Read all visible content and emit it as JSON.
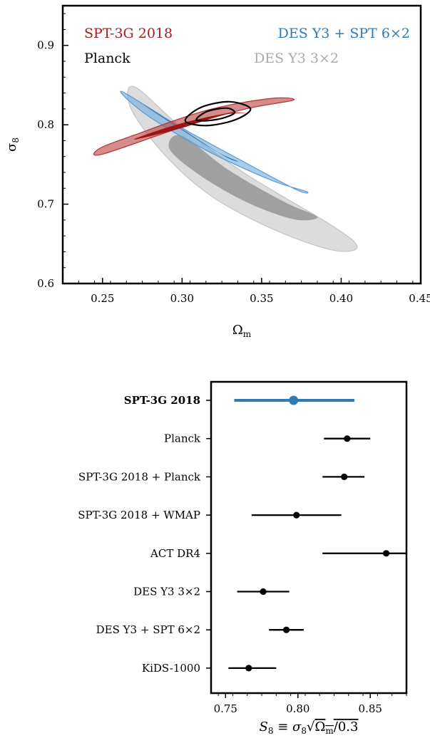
{
  "chart_data": [
    {
      "type": "contour",
      "xlabel": "Ω",
      "xlabel_sub": "m",
      "ylabel": "σ",
      "ylabel_sub": "8",
      "xlim": [
        0.225,
        0.45
      ],
      "ylim": [
        0.6,
        0.95
      ],
      "xticks": [
        "0.25",
        "0.30",
        "0.35",
        "0.40",
        "0.45"
      ],
      "yticks": [
        "0.6",
        "0.7",
        "0.8",
        "0.9"
      ],
      "legend": [
        {
          "label": "SPT-3G 2018",
          "color": "#a31f1f"
        },
        {
          "label": "DES Y3 + SPT 6×2",
          "color": "#2f7bb5"
        },
        {
          "label": "Planck",
          "color": "#000000"
        },
        {
          "label": "DES Y3 3×2",
          "color": "#aaaaaa"
        }
      ],
      "series": [
        {
          "name": "DES Y3 3×2",
          "color": "#aaaaaa",
          "center": [
            0.335,
            0.736
          ],
          "contours": [
            {
              "level": "95%",
              "points": [
                [
                  0.27,
                  0.848
                ],
                [
                  0.3,
                  0.796
                ],
                [
                  0.34,
                  0.738
                ],
                [
                  0.395,
                  0.672
                ],
                [
                  0.41,
                  0.646
                ],
                [
                  0.395,
                  0.642
                ],
                [
                  0.36,
                  0.666
                ],
                [
                  0.32,
                  0.708
                ],
                [
                  0.29,
                  0.76
                ],
                [
                  0.268,
                  0.82
                ]
              ]
            },
            {
              "level": "68%",
              "points": [
                [
                  0.3,
                  0.786
                ],
                [
                  0.33,
                  0.742
                ],
                [
                  0.365,
                  0.702
                ],
                [
                  0.385,
                  0.684
                ],
                [
                  0.37,
                  0.681
                ],
                [
                  0.34,
                  0.703
                ],
                [
                  0.31,
                  0.738
                ],
                [
                  0.292,
                  0.77
                ]
              ]
            }
          ]
        },
        {
          "name": "DES Y3 + SPT 6×2",
          "color": "#2f7bb5",
          "center": [
            0.31,
            0.79
          ],
          "contours": [
            {
              "level": "95%",
              "points": [
                [
                  0.262,
                  0.842
                ],
                [
                  0.3,
                  0.796
                ],
                [
                  0.34,
                  0.752
                ],
                [
                  0.372,
                  0.718
                ],
                [
                  0.378,
                  0.716
                ],
                [
                  0.355,
                  0.731
                ],
                [
                  0.315,
                  0.768
                ],
                [
                  0.278,
                  0.812
                ]
              ]
            },
            {
              "level": "68%",
              "points": [
                [
                  0.28,
                  0.82
                ],
                [
                  0.305,
                  0.788
                ],
                [
                  0.327,
                  0.76
                ],
                [
                  0.335,
                  0.754
                ],
                [
                  0.322,
                  0.766
                ],
                [
                  0.298,
                  0.796
                ],
                [
                  0.278,
                  0.822
                ]
              ]
            }
          ]
        },
        {
          "name": "SPT-3G 2018",
          "color": "#a31f1f",
          "center": [
            0.313,
            0.8
          ],
          "contours": [
            {
              "level": "95%",
              "points": [
                [
                  0.25,
                  0.763
                ],
                [
                  0.3,
                  0.797
                ],
                [
                  0.34,
                  0.82
                ],
                [
                  0.37,
                  0.831
                ],
                [
                  0.355,
                  0.833
                ],
                [
                  0.315,
                  0.818
                ],
                [
                  0.27,
                  0.787
                ],
                [
                  0.248,
                  0.77
                ]
              ]
            },
            {
              "level": "68%",
              "points": [
                [
                  0.272,
                  0.782
                ],
                [
                  0.3,
                  0.796
                ],
                [
                  0.325,
                  0.812
                ],
                [
                  0.34,
                  0.815
                ],
                [
                  0.327,
                  0.814
                ],
                [
                  0.3,
                  0.802
                ],
                [
                  0.275,
                  0.786
                ]
              ]
            }
          ]
        },
        {
          "name": "Planck",
          "color": "#000000",
          "center": [
            0.319,
            0.812
          ],
          "contours": [
            {
              "level": "95%",
              "points": [
                [
                  0.302,
                  0.805
                ],
                [
                  0.312,
                  0.822
                ],
                [
                  0.33,
                  0.829
                ],
                [
                  0.343,
                  0.82
                ],
                [
                  0.333,
                  0.806
                ],
                [
                  0.315,
                  0.799
                ]
              ]
            },
            {
              "level": "68%",
              "points": [
                [
                  0.309,
                  0.807
                ],
                [
                  0.316,
                  0.817
                ],
                [
                  0.328,
                  0.821
                ],
                [
                  0.333,
                  0.815
                ],
                [
                  0.325,
                  0.808
                ],
                [
                  0.314,
                  0.805
                ]
              ]
            }
          ]
        }
      ]
    },
    {
      "type": "scatter",
      "subtype": "errorbar",
      "xlabel": "S₈ ≡ σ₈√(Ωm/0.3)",
      "xlim": [
        0.74,
        0.875
      ],
      "xticks": [
        "0.75",
        "0.80",
        "0.85"
      ],
      "categories": [
        "SPT-3G 2018",
        "Planck",
        "SPT-3G 2018 + Planck",
        "SPT-3G 2018 + WMAP",
        "ACT DR4",
        "DES Y3 3×2",
        "DES Y3 + SPT 6×2",
        "KiDS-1000"
      ],
      "highlight": "SPT-3G 2018",
      "highlight_color": "#2f7bb5",
      "values": [
        0.797,
        0.834,
        0.832,
        0.799,
        0.861,
        0.776,
        0.792,
        0.766
      ],
      "lower": [
        0.756,
        0.818,
        0.817,
        0.768,
        0.817,
        0.758,
        0.78,
        0.752
      ],
      "upper": [
        0.839,
        0.85,
        0.846,
        0.83,
        0.875,
        0.794,
        0.804,
        0.785
      ]
    }
  ]
}
